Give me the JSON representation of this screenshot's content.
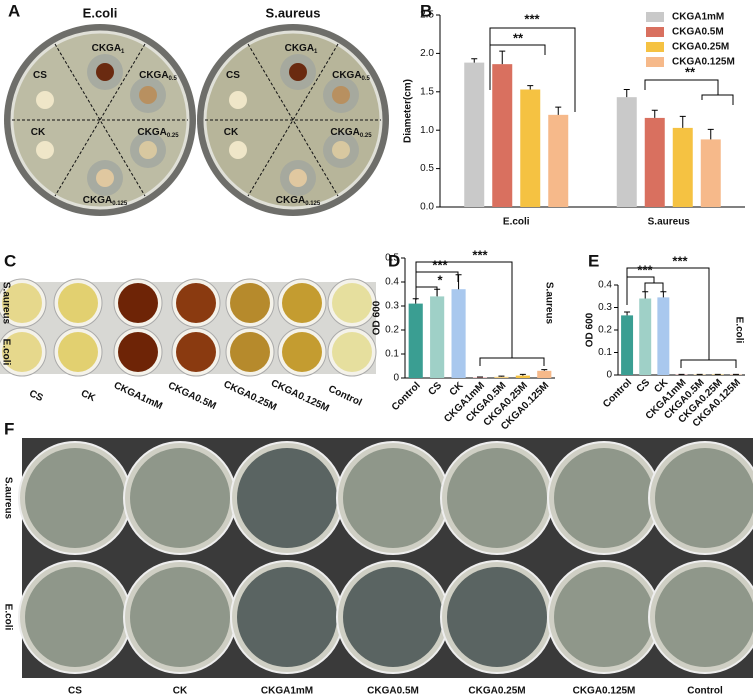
{
  "chart_data": [
    {
      "type": "bar",
      "ylabel": "Diameter(cm)",
      "categories": [
        "E.coli",
        "S.aureus"
      ],
      "series": [
        {
          "name": "CKGA1mM",
          "color": "#c9c9c9",
          "values": [
            1.88,
            1.43
          ],
          "errors": [
            0.05,
            0.1
          ]
        },
        {
          "name": "CKGA0.5M",
          "color": "#d9705f",
          "values": [
            1.86,
            1.16
          ],
          "errors": [
            0.17,
            0.1
          ]
        },
        {
          "name": "CKGA0.25M",
          "color": "#f5c242",
          "values": [
            1.53,
            1.03
          ],
          "errors": [
            0.05,
            0.15
          ]
        },
        {
          "name": "CKGA0.125M",
          "color": "#f6b98a",
          "values": [
            1.2,
            0.88
          ],
          "errors": [
            0.1,
            0.13
          ]
        }
      ],
      "ylim": [
        0,
        2.5
      ],
      "yticks": [
        {
          "value": 0,
          "label": "0.0"
        },
        0.5,
        {
          "value": 1,
          "label": "1.0"
        },
        1.5,
        {
          "value": 2,
          "label": "2.0"
        },
        2.5
      ],
      "annotations": [
        "***",
        "**",
        "**"
      ]
    },
    {
      "type": "bar",
      "ylabel": "OD 600",
      "side_label": "S.aureus",
      "categories": [
        "Control",
        "CS",
        "CK",
        "CKGA1mM",
        "CKGA0.5M",
        "CKGA0.25M",
        "CKGA0.125M"
      ],
      "values": [
        0.31,
        0.34,
        0.37,
        0.002,
        0.005,
        0.01,
        0.03
      ],
      "errors": [
        0.02,
        0.03,
        0.06,
        0.002,
        0.003,
        0.005,
        0.005
      ],
      "colors": [
        "#3a9e92",
        "#9fd0c7",
        "#a9c8ee",
        "#e9a0a0",
        "#f5d080",
        "#f5c242",
        "#f6b98a"
      ],
      "ylim": [
        0,
        0.5
      ],
      "yticks": [
        0,
        0.1,
        0.2,
        0.3,
        0.4,
        0.5
      ],
      "annotations": [
        "*",
        "***",
        "***"
      ]
    },
    {
      "type": "bar",
      "ylabel": "OD 600",
      "side_label": "E.coli",
      "categories": [
        "Control",
        "CS",
        "CK",
        "CKGA1mM",
        "CKGA0.5M",
        "CKGA0.25M",
        "CKGA0.125M"
      ],
      "values": [
        0.265,
        0.34,
        0.345,
        0.002,
        0.002,
        0.002,
        0.002
      ],
      "errors": [
        0.015,
        0.03,
        0.025,
        0.001,
        0.001,
        0.001,
        0.001
      ],
      "colors": [
        "#3a9e92",
        "#9fd0c7",
        "#a9c8ee",
        "#e9a0a0",
        "#f5d080",
        "#f5c242",
        "#f6b98a"
      ],
      "ylim": [
        0,
        0.4
      ],
      "yticks": [
        0,
        0.1,
        0.2,
        0.3,
        0.4
      ],
      "annotations": [
        "***",
        "***"
      ]
    }
  ],
  "figure": {
    "letters": [
      "A",
      "B",
      "C",
      "D",
      "E",
      "F"
    ],
    "plate_a": {
      "titles": [
        "E.coli",
        "S.aureus"
      ],
      "labels": [
        {
          "base": "CKGA",
          "sub": "1"
        },
        {
          "base": "CKGA",
          "sub": "0.5"
        },
        {
          "base": "CS"
        },
        {
          "base": "CK"
        },
        {
          "base": "CKGA",
          "sub": "0.25"
        },
        {
          "base": "CKGA",
          "sub": "0.125"
        }
      ]
    },
    "plate_c": {
      "rows": [
        "S.aureus",
        "E.coli"
      ],
      "columns": [
        "CS",
        "CK",
        "CKGA1mM",
        "CKGA0.5M",
        "CKGA0.25M",
        "CKGA0.125M",
        "Control"
      ]
    },
    "plate_f": {
      "rows": [
        "S.aureus",
        "E.coli"
      ],
      "columns": [
        "CS",
        "CK",
        "CKGA1mM",
        "CKGA0.5M",
        "CKGA0.25M",
        "CKGA0.125M",
        "Control"
      ]
    }
  }
}
